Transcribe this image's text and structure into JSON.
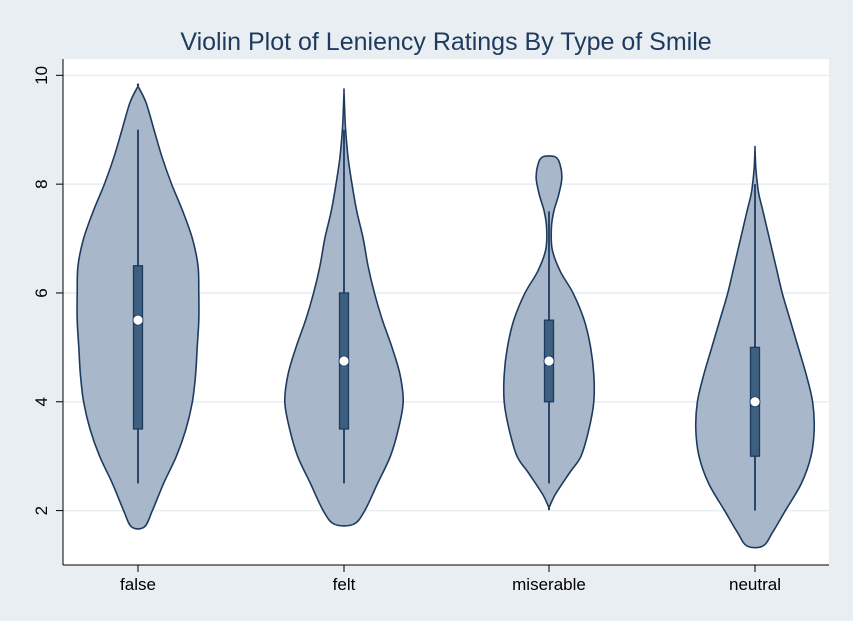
{
  "chart_data": {
    "type": "violin",
    "title": "Violin Plot of Leniency Ratings By Type of Smile",
    "xlabel": "",
    "ylabel": "",
    "ylim": [
      1.0,
      10.3
    ],
    "yticks": [
      2,
      4,
      6,
      8,
      10
    ],
    "grid": true,
    "categories": [
      "false",
      "felt",
      "miserable",
      "neutral"
    ],
    "colors": {
      "fill": "#a8b8ca",
      "outline": "#1e3a5f",
      "box": "#3d5f80",
      "median_marker": "#ffffff",
      "background": "#e8eef1",
      "plot_background": "#ffffff"
    },
    "box_stats": [
      {
        "category": "false",
        "whisker_low": 2.5,
        "q1": 3.5,
        "median": 5.5,
        "q3": 6.5,
        "whisker_high": 9.0
      },
      {
        "category": "felt",
        "whisker_low": 2.5,
        "q1": 3.5,
        "median": 4.75,
        "q3": 6.0,
        "whisker_high": 9.0
      },
      {
        "category": "miserable",
        "whisker_low": 2.5,
        "q1": 4.0,
        "median": 4.75,
        "q3": 5.5,
        "whisker_high": 7.5
      },
      {
        "category": "neutral",
        "whisker_low": 2.0,
        "q1": 3.0,
        "median": 4.0,
        "q3": 5.0,
        "whisker_high": 8.0
      }
    ],
    "densities": [
      {
        "category": "false",
        "y": [
          1.7,
          2.0,
          2.5,
          3.0,
          3.5,
          4.0,
          4.5,
          5.0,
          5.5,
          6.0,
          6.5,
          7.0,
          7.5,
          8.0,
          8.5,
          9.0,
          9.5,
          9.8
        ],
        "width": [
          0.08,
          0.18,
          0.32,
          0.48,
          0.6,
          0.68,
          0.72,
          0.74,
          0.76,
          0.76,
          0.75,
          0.68,
          0.56,
          0.42,
          0.3,
          0.2,
          0.1,
          0.0
        ]
      },
      {
        "category": "felt",
        "y": [
          1.75,
          2.0,
          2.5,
          3.0,
          3.5,
          4.0,
          4.5,
          5.0,
          5.5,
          6.0,
          6.5,
          7.0,
          7.5,
          8.0,
          8.5,
          9.0,
          9.3,
          9.7
        ],
        "width": [
          0.12,
          0.26,
          0.42,
          0.58,
          0.68,
          0.74,
          0.7,
          0.6,
          0.48,
          0.38,
          0.3,
          0.24,
          0.16,
          0.1,
          0.05,
          0.02,
          0.01,
          0.0
        ]
      },
      {
        "category": "miserable",
        "y": [
          2.05,
          2.3,
          2.7,
          3.0,
          3.5,
          4.0,
          4.5,
          5.0,
          5.5,
          6.0,
          6.4,
          6.8,
          7.2,
          7.5,
          7.8,
          8.1,
          8.35,
          8.5
        ],
        "width": [
          0.0,
          0.08,
          0.26,
          0.4,
          0.5,
          0.56,
          0.56,
          0.52,
          0.44,
          0.3,
          0.14,
          0.04,
          0.03,
          0.06,
          0.12,
          0.16,
          0.14,
          0.08
        ]
      },
      {
        "category": "neutral",
        "y": [
          1.35,
          1.6,
          2.0,
          2.5,
          3.0,
          3.5,
          4.0,
          4.5,
          5.0,
          5.5,
          6.0,
          6.5,
          7.0,
          7.5,
          7.8,
          8.0,
          8.3,
          8.65
        ],
        "width": [
          0.1,
          0.22,
          0.38,
          0.58,
          0.7,
          0.74,
          0.72,
          0.64,
          0.54,
          0.44,
          0.34,
          0.26,
          0.18,
          0.1,
          0.05,
          0.03,
          0.01,
          0.0
        ]
      }
    ]
  }
}
